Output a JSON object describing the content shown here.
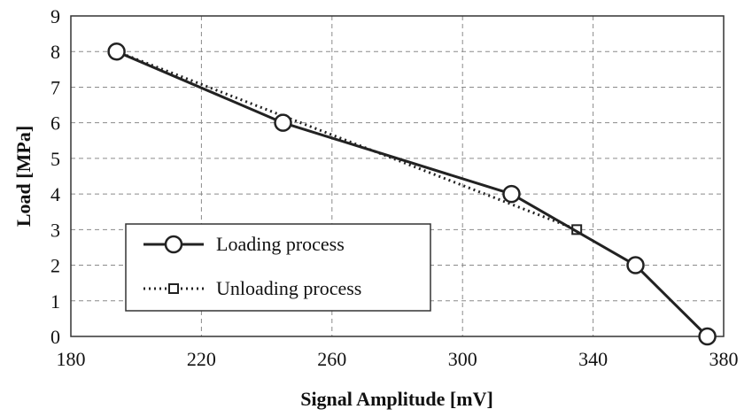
{
  "chart_data": {
    "type": "line",
    "xlabel": "Signal Amplitude [mV]",
    "ylabel": "Load [MPa]",
    "xlim": [
      180,
      380
    ],
    "ylim": [
      0,
      9
    ],
    "xticks": [
      "180",
      "220",
      "260",
      "300",
      "340",
      "380"
    ],
    "yticks": [
      "0",
      "1",
      "2",
      "3",
      "4",
      "5",
      "6",
      "7",
      "8",
      "9"
    ],
    "grid": true,
    "legend_position": "bottom-left",
    "series": [
      {
        "name": "Loading process",
        "line_style": "solid",
        "marker": "circle",
        "x": [
          194,
          245,
          315,
          353,
          375
        ],
        "y": [
          8,
          6,
          4,
          2,
          0
        ]
      },
      {
        "name": "Unloading process",
        "line_style": "dotted",
        "marker": "square",
        "x": [
          194,
          335
        ],
        "y": [
          8,
          3
        ]
      }
    ]
  }
}
